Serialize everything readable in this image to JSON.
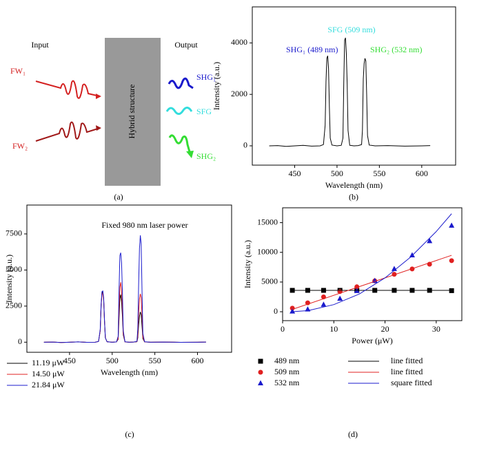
{
  "diagram": {
    "input_label": "Input",
    "output_label": "Output",
    "box_label": "Hybrid structure",
    "inputs": [
      "FW₁",
      "FW₂"
    ],
    "outputs": [
      "SHG₁",
      "SFG",
      "SHG₂"
    ],
    "caption": "(a)"
  },
  "chart_data": [
    {
      "type": "line",
      "caption": "(b)",
      "x_label": "Wavelength (nm)",
      "y_label": "Intensity (a.u.)",
      "annotations": [
        {
          "text": "SHG₁ (489 nm)",
          "color": "#1a1acc"
        },
        {
          "text": "SFG (509 nm)",
          "color": "#33dddd"
        },
        {
          "text": "SHG₂ (532 nm)",
          "color": "#33dd33"
        }
      ],
      "x": [
        420,
        430,
        440,
        450,
        460,
        470,
        480,
        484,
        486,
        487,
        488,
        489,
        490,
        491,
        492,
        494,
        500,
        505,
        507,
        508,
        509,
        510,
        511,
        512,
        513,
        515,
        520,
        525,
        529,
        530,
        531,
        532,
        533,
        534,
        535,
        536,
        538,
        545,
        560,
        580,
        600,
        610
      ],
      "values": [
        0,
        10,
        -20,
        0,
        20,
        -10,
        0,
        50,
        800,
        2500,
        3400,
        3500,
        3000,
        1500,
        300,
        30,
        0,
        20,
        300,
        2500,
        4100,
        4200,
        3600,
        2400,
        600,
        20,
        0,
        10,
        50,
        600,
        2600,
        3200,
        3400,
        3300,
        2000,
        400,
        30,
        0,
        10,
        -10,
        0,
        10
      ],
      "color": "#000000",
      "xlim": [
        400,
        640
      ],
      "xticks": [
        450,
        500,
        550,
        600
      ],
      "ylim": [
        -750,
        5400
      ],
      "yticks": [
        0,
        2000,
        4000
      ]
    },
    {
      "type": "line",
      "caption": "(c)",
      "x_label": "Wavelength (nm)",
      "y_label": "Intensity (a.u.)",
      "annotations": [
        {
          "text": "Fixed 980 nm laser power",
          "color": "#000000"
        }
      ],
      "x": [
        420,
        430,
        440,
        450,
        460,
        470,
        480,
        484,
        486,
        487,
        488,
        489,
        490,
        491,
        492,
        494,
        500,
        505,
        507,
        508,
        509,
        510,
        511,
        512,
        513,
        515,
        520,
        525,
        529,
        530,
        531,
        532,
        533,
        534,
        535,
        536,
        538,
        545,
        560,
        580,
        600,
        610
      ],
      "series": [
        {
          "name": "11.19 μW",
          "color": "#000000",
          "values": [
            0,
            10,
            -20,
            0,
            20,
            -10,
            0,
            50,
            800,
            2500,
            3400,
            3500,
            3000,
            1500,
            300,
            30,
            0,
            20,
            200,
            1600,
            3000,
            3300,
            2800,
            1800,
            500,
            20,
            0,
            10,
            30,
            300,
            1200,
            1800,
            2100,
            1900,
            1100,
            250,
            20,
            0,
            10,
            -10,
            0,
            10
          ]
        },
        {
          "name": "14.50 μW",
          "color": "#e02020",
          "values": [
            0,
            10,
            -20,
            0,
            20,
            -10,
            0,
            50,
            800,
            2500,
            3300,
            3400,
            2900,
            1400,
            300,
            30,
            0,
            20,
            250,
            2100,
            3800,
            4150,
            3500,
            2300,
            600,
            20,
            0,
            10,
            40,
            450,
            2000,
            3000,
            3350,
            3100,
            1800,
            350,
            20,
            0,
            10,
            -10,
            0,
            10
          ]
        },
        {
          "name": "21.84 μW",
          "color": "#1a1acc",
          "values": [
            0,
            10,
            -20,
            0,
            20,
            -10,
            0,
            50,
            900,
            2600,
            3500,
            3550,
            3100,
            1500,
            300,
            30,
            0,
            20,
            400,
            3500,
            6000,
            6200,
            5500,
            3500,
            800,
            30,
            0,
            10,
            60,
            900,
            4000,
            6500,
            7400,
            6800,
            3500,
            600,
            30,
            0,
            10,
            -10,
            0,
            10
          ]
        }
      ],
      "legend": "below",
      "xlim": [
        400,
        640
      ],
      "xticks": [
        450,
        500,
        550,
        600
      ],
      "ylim": [
        -700,
        9500
      ],
      "yticks": [
        0,
        2500,
        5000,
        7500
      ]
    },
    {
      "type": "scatter",
      "caption": "(d)",
      "x_label": "Power (μW)",
      "y_label": "Intensity (a.u.)",
      "series": [
        {
          "name": "489 nm",
          "color": "#000000",
          "marker": "square",
          "x": [
            1.9,
            4.9,
            8,
            11.2,
            14.5,
            18,
            21.8,
            25.3,
            28.7,
            33
          ],
          "values": [
            3600,
            3600,
            3600,
            3600,
            3600,
            3600,
            3600,
            3600,
            3600,
            3550
          ]
        },
        {
          "name": "509 nm",
          "color": "#e02020",
          "marker": "circle",
          "x": [
            1.9,
            4.9,
            8,
            11.2,
            14.5,
            18,
            21.8,
            25.3,
            28.7,
            33
          ],
          "values": [
            600,
            1500,
            2500,
            3400,
            4200,
            5200,
            6300,
            7200,
            8000,
            8600
          ]
        },
        {
          "name": "532 nm",
          "color": "#1a1acc",
          "marker": "triangle",
          "x": [
            1.9,
            4.9,
            8,
            11.2,
            14.5,
            18,
            21.8,
            25.3,
            28.7,
            33
          ],
          "values": [
            50,
            400,
            1200,
            2200,
            3500,
            5200,
            7200,
            9500,
            11900,
            14500
          ],
          "errors": [
            100,
            100,
            150,
            200,
            250,
            300,
            300,
            300,
            350,
            350
          ]
        },
        {
          "name": "line fitted",
          "color": "#000000",
          "marker": "none",
          "x": [
            1.9,
            33
          ],
          "values": [
            3600,
            3600
          ]
        },
        {
          "name": "line fitted",
          "color": "#e02020",
          "marker": "none",
          "x": [
            1.9,
            33
          ],
          "values": [
            400,
            9500
          ]
        },
        {
          "name": "square fitted",
          "color": "#1a1acc",
          "marker": "none",
          "x": [
            1.9,
            5,
            10,
            15,
            20,
            25,
            30,
            33
          ],
          "values": [
            0,
            200,
            1200,
            3000,
            5700,
            9200,
            13500,
            16500
          ]
        }
      ],
      "legend": "below",
      "xlim": [
        0,
        35
      ],
      "xticks": [
        0,
        10,
        20,
        30
      ],
      "ylim": [
        -1500,
        17500
      ],
      "yticks": [
        0,
        5000,
        10000,
        15000
      ]
    }
  ]
}
